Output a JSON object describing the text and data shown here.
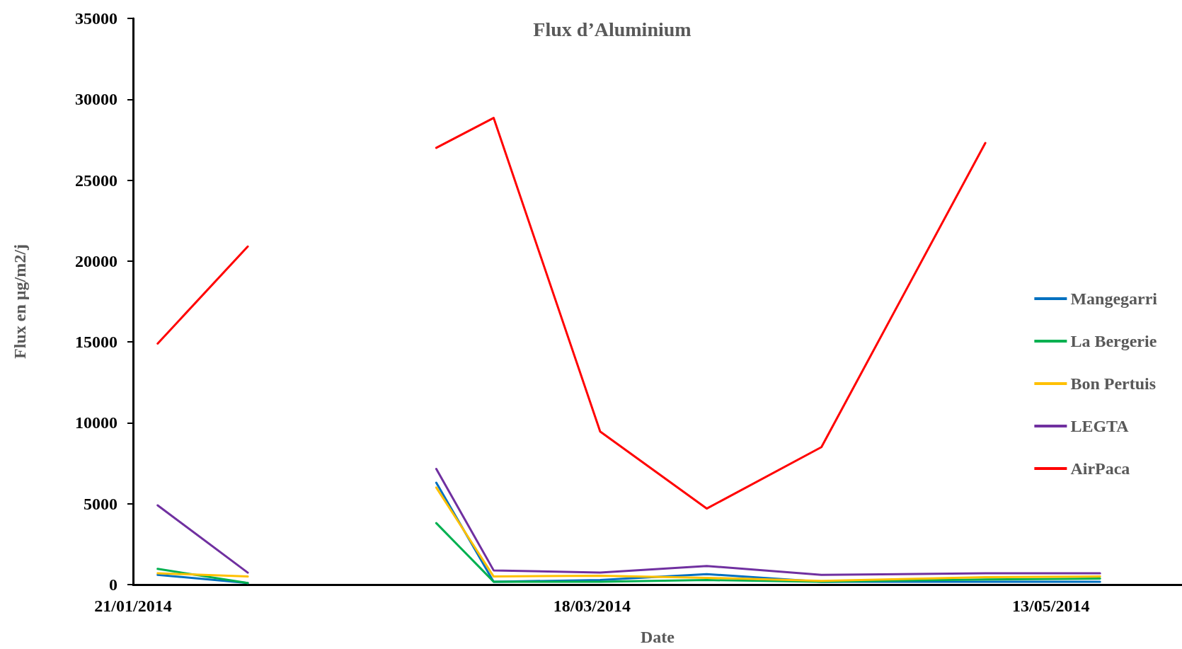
{
  "chart_data": {
    "type": "line",
    "title": "Flux d’Aluminium",
    "xlabel": "Date",
    "ylabel": "Flux en µg/m2/j",
    "x": [
      "2014-01-24",
      "2014-02-04",
      "2014-02-16",
      "2014-02-27",
      "2014-03-06",
      "2014-03-19",
      "2014-04-01",
      "2014-04-15",
      "2014-05-05",
      "2014-05-19"
    ],
    "series": [
      {
        "name": "Mangegarri",
        "color": "#0070c0",
        "values": [
          600,
          100,
          null,
          6300,
          180,
          280,
          650,
          180,
          180,
          180
        ]
      },
      {
        "name": "La Bergerie",
        "color": "#00b050",
        "values": [
          970,
          100,
          null,
          3800,
          180,
          180,
          280,
          180,
          320,
          370
        ]
      },
      {
        "name": "Bon Pertuis",
        "color": "#ffc000",
        "values": [
          700,
          500,
          null,
          6000,
          500,
          550,
          420,
          230,
          460,
          500
        ]
      },
      {
        "name": "LEGTA",
        "color": "#7030a0",
        "values": [
          4900,
          740,
          null,
          7150,
          880,
          740,
          1150,
          600,
          700,
          700
        ]
      },
      {
        "name": "AirPaca",
        "color": "#ff0000",
        "values": [
          14900,
          20900,
          null,
          27000,
          28850,
          9460,
          4700,
          8500,
          27300,
          null
        ]
      }
    ],
    "xlim": [
      "2014-01-21",
      "2014-05-29"
    ],
    "xticks": [
      {
        "value": "2014-01-21",
        "label": "21/01/2014"
      },
      {
        "value": "2014-03-18",
        "label": "18/03/2014"
      },
      {
        "value": "2014-05-13",
        "label": "13/05/2014"
      }
    ],
    "ylim": [
      0,
      35000
    ],
    "yticks": [
      0,
      5000,
      10000,
      15000,
      20000,
      25000,
      30000,
      35000
    ],
    "grid": false,
    "legend": "right",
    "marker": "none",
    "line_style": "solid"
  }
}
